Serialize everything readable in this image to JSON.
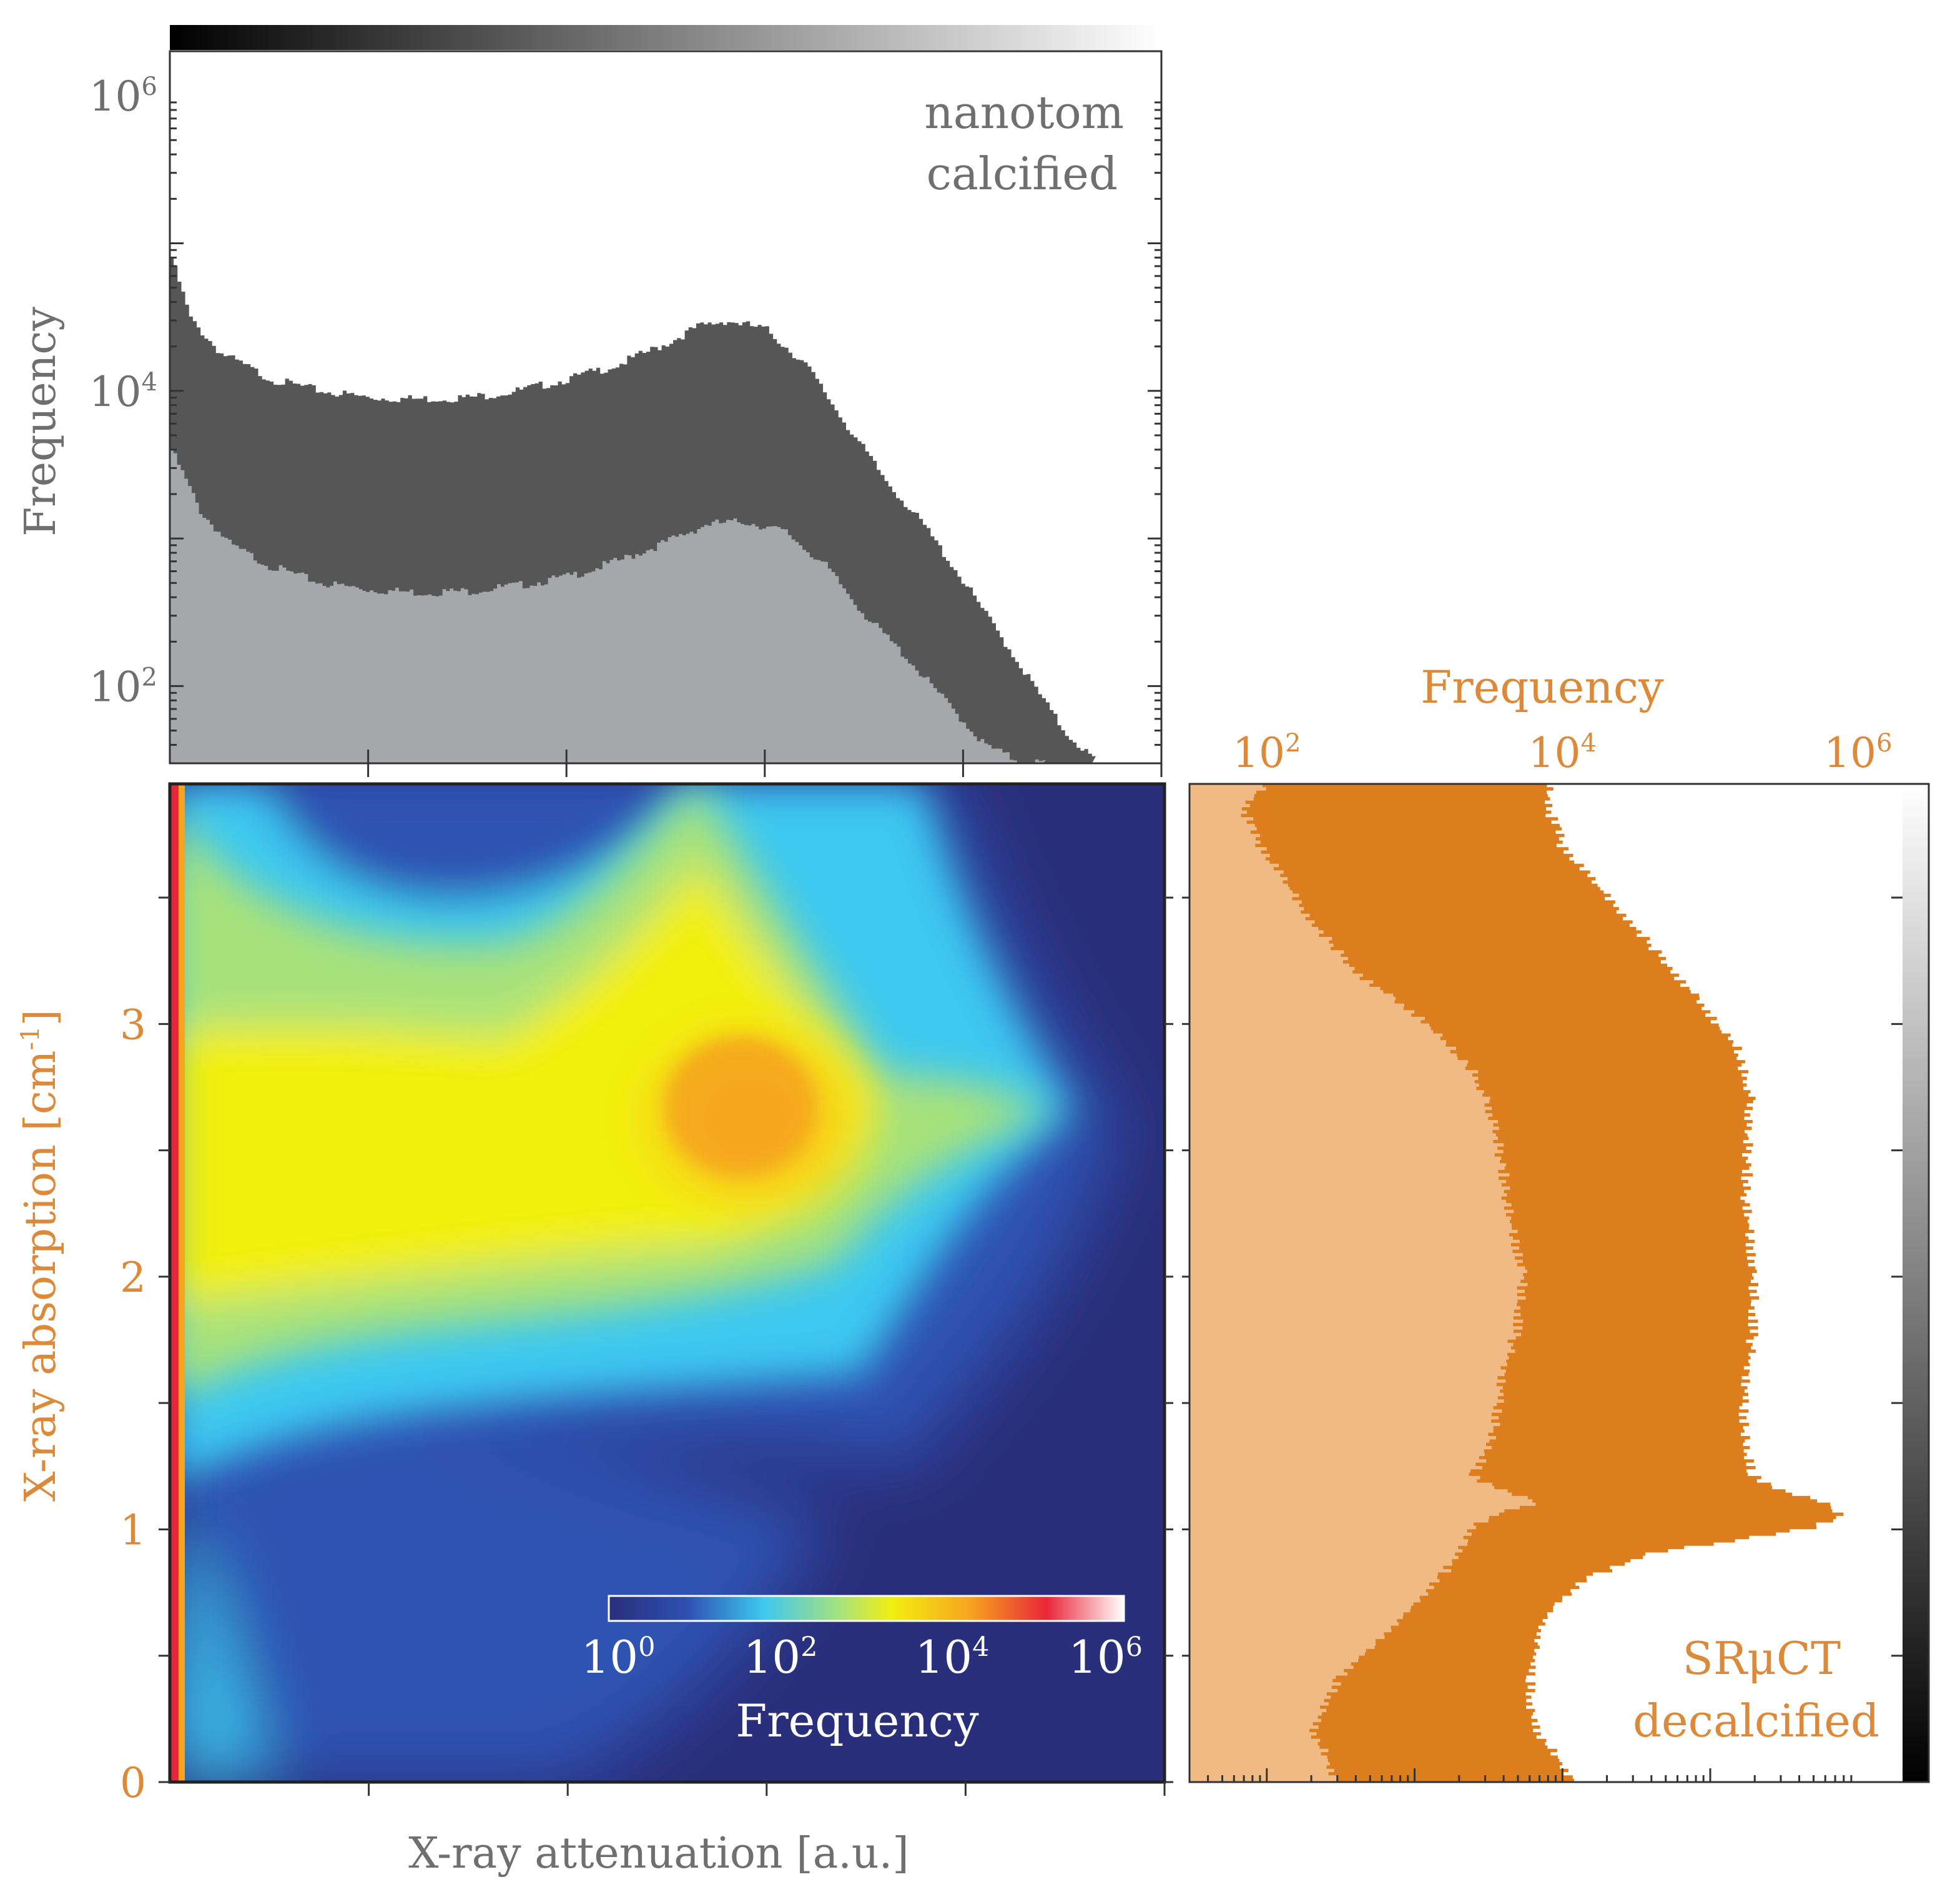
{
  "colors": {
    "grey_dark": "#565656",
    "grey_light": "#a6a7aa",
    "grey_text": "#6f6f6f",
    "orange_dark": "#dc7e1e",
    "orange_light": "#f0ba84",
    "orange_text": "#dc8a3a",
    "heatmap_background": "#2a2f7c",
    "axis": "#333333"
  },
  "chart_data": [
    {
      "id": "top-histogram",
      "type": "area",
      "ylabel": "Frequency",
      "yscale": "log",
      "ylim": [
        30,
        2000000
      ],
      "yticks": [
        {
          "value": 100,
          "label": "10",
          "exp": "2"
        },
        {
          "value": 10000,
          "label": "10",
          "exp": "4"
        },
        {
          "value": 1000000,
          "label": "10",
          "exp": "6"
        }
      ],
      "xlim": [
        0,
        1
      ],
      "annotation": [
        "nanotom",
        "calcified"
      ],
      "top_colorbar": "greyscale",
      "series": [
        {
          "role": "total",
          "x": [
            0,
            0.02,
            0.05,
            0.1,
            0.15,
            0.2,
            0.25,
            0.3,
            0.35,
            0.4,
            0.45,
            0.5,
            0.53,
            0.56,
            0.6,
            0.64,
            0.68,
            0.72,
            0.76,
            0.8,
            0.84,
            0.87,
            0.9,
            0.93
          ],
          "y": [
            80000,
            30000,
            18000,
            12000,
            10000,
            9000,
            8800,
            9000,
            10000,
            12000,
            15000,
            21000,
            27000,
            30000,
            26000,
            15000,
            6000,
            2500,
            1200,
            500,
            200,
            100,
            50,
            32
          ]
        },
        {
          "role": "subset",
          "x": [
            0,
            0.03,
            0.06,
            0.1,
            0.15,
            0.2,
            0.25,
            0.3,
            0.35,
            0.4,
            0.45,
            0.5,
            0.54,
            0.58,
            0.62,
            0.66,
            0.7,
            0.74,
            0.78,
            0.82,
            0.85,
            0.88
          ],
          "y": [
            4000,
            1500,
            900,
            650,
            500,
            450,
            430,
            440,
            480,
            550,
            700,
            950,
            1250,
            1300,
            1100,
            650,
            300,
            160,
            80,
            40,
            32,
            30
          ]
        }
      ]
    },
    {
      "id": "main-heatmap",
      "type": "heatmap",
      "xlabel": "X-ray attenuation [a.u.]",
      "ylabel": "X-ray absorption [cm",
      "ylabel_sup": "-1",
      "ylabel_end": "]",
      "ylim": [
        0,
        3.95
      ],
      "yticks": [
        0,
        1,
        2,
        3
      ],
      "xlim": [
        0,
        1
      ],
      "colorscale": "jet (log)",
      "colorbar": {
        "label": "Frequency",
        "ticks": [
          {
            "label": "10",
            "exp": "0"
          },
          {
            "label": "10",
            "exp": "2"
          },
          {
            "label": "10",
            "exp": "4"
          },
          {
            "label": "10",
            "exp": "6"
          }
        ]
      },
      "density_features": [
        {
          "x": 0.58,
          "y": 2.65,
          "log10_frequency": 3.8
        },
        {
          "x": 0.88,
          "y": 2.65,
          "log10_frequency": 1.5
        },
        {
          "x": 0.0,
          "y": 2.3,
          "log10_frequency": 5.5
        },
        {
          "x": 0.15,
          "y": 1.2,
          "log10_frequency": 1.0
        }
      ]
    },
    {
      "id": "right-histogram",
      "type": "area",
      "orientation": "horizontal",
      "title": "Frequency",
      "xscale": "log",
      "xlim": [
        30,
        2000000
      ],
      "xticks": [
        {
          "value": 100,
          "label": "10",
          "exp": "2"
        },
        {
          "value": 10000,
          "label": "10",
          "exp": "4"
        },
        {
          "value": 1000000,
          "label": "10",
          "exp": "6"
        }
      ],
      "ylim": [
        0,
        3.95
      ],
      "annotation": [
        "SRμCT",
        "decalcified"
      ],
      "side_colorbar": "greyscale",
      "series": [
        {
          "role": "total",
          "y": [
            0,
            0.1,
            0.2,
            0.3,
            0.4,
            0.5,
            0.6,
            0.7,
            0.8,
            0.9,
            0.95,
            1.0,
            1.05,
            1.1,
            1.15,
            1.2,
            1.3,
            1.5,
            1.7,
            1.9,
            2.1,
            2.3,
            2.5,
            2.7,
            2.9,
            3.1,
            3.3,
            3.5,
            3.7,
            3.85,
            3.95
          ],
          "x": [
            12000,
            9000,
            6500,
            6000,
            6000,
            6500,
            7000,
            9000,
            15000,
            40000,
            150000,
            500000,
            800000,
            600000,
            300000,
            200000,
            170000,
            170000,
            190000,
            200000,
            190000,
            175000,
            180000,
            185000,
            150000,
            80000,
            40000,
            20000,
            10000,
            8000,
            8000
          ]
        },
        {
          "role": "subset",
          "y": [
            0,
            0.1,
            0.2,
            0.3,
            0.4,
            0.5,
            0.6,
            0.7,
            0.8,
            0.9,
            1.0,
            1.05,
            1.1,
            1.15,
            1.2,
            1.4,
            1.6,
            1.8,
            2.0,
            2.2,
            2.4,
            2.6,
            2.8,
            3.0,
            3.2,
            3.4,
            3.6,
            3.75,
            3.85,
            3.95
          ],
          "x": [
            300,
            250,
            200,
            250,
            300,
            450,
            700,
            1000,
            1500,
            2000,
            2500,
            3500,
            7000,
            4000,
            2500,
            3500,
            4000,
            5000,
            5500,
            4500,
            4000,
            3500,
            2500,
            1200,
            400,
            200,
            120,
            80,
            70,
            100
          ]
        }
      ]
    }
  ]
}
